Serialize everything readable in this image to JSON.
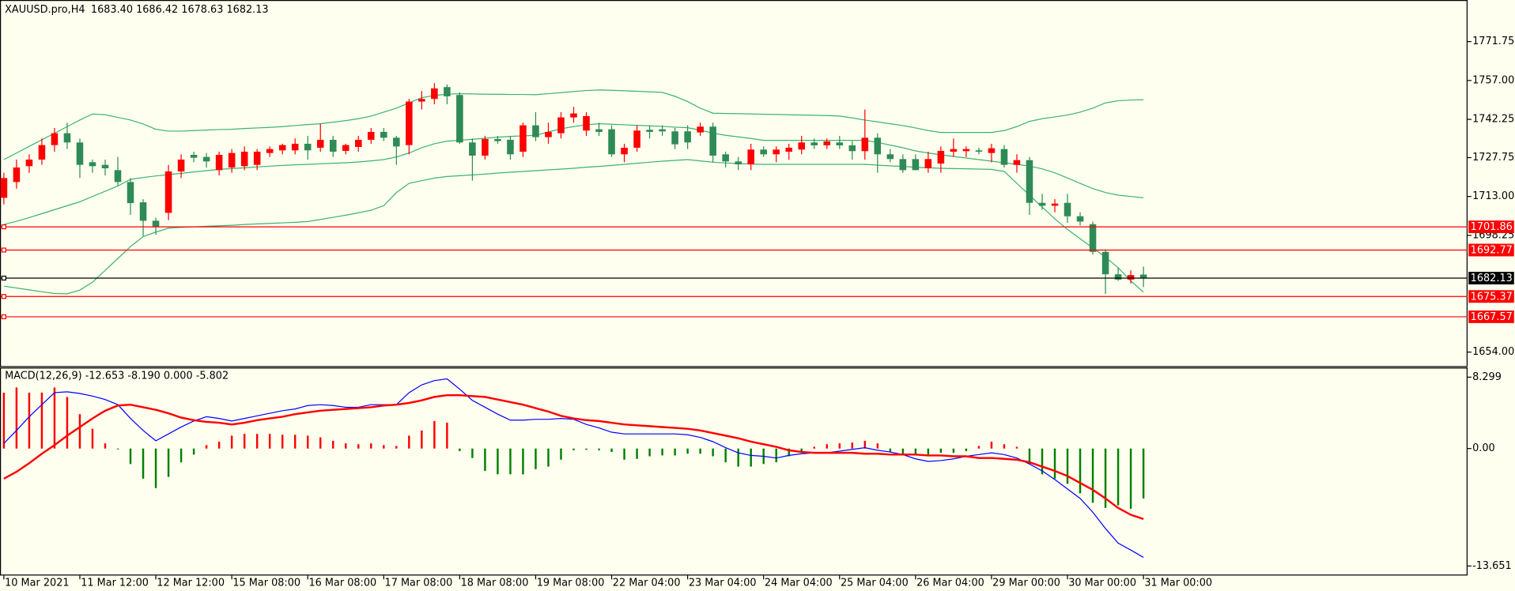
{
  "chart_data": [
    {
      "type": "candlestick",
      "title": "XAUUSD.pro,H4",
      "subtitle": "1683.40 1686.42 1678.63 1682.13",
      "up_color": "#ff0000",
      "down_color": "#2e8b57",
      "open": [
        1712.5,
        1718.5,
        1724.5,
        1727,
        1732.5,
        1737,
        1733.5,
        1726,
        1725,
        1723,
        1718.5,
        1710.8,
        1703.8,
        1706.8,
        1722.5,
        1728.8,
        1728,
        1723,
        1724,
        1724.5,
        1725,
        1729.5,
        1730.5,
        1730.5,
        1733,
        1731.5,
        1734.5,
        1730.3,
        1731.8,
        1734.5,
        1737.5,
        1735.3,
        1732.5,
        1749,
        1750,
        1754.5,
        1751.5,
        1733.5,
        1728.5,
        1734.8,
        1734.5,
        1730,
        1740,
        1735.5,
        1737,
        1743,
        1738,
        1738.5,
        1738.5,
        1729,
        1731.5,
        1738.3,
        1738.5,
        1737.7,
        1737.7,
        1737.3,
        1739.5,
        1729,
        1726.3,
        1725.2,
        1730.8,
        1729,
        1730,
        1730.8,
        1733.5,
        1732.4,
        1733.5,
        1732.4,
        1730.2,
        1735.3,
        1729,
        1727.2,
        1727.2,
        1723.7,
        1725.5,
        1730,
        1730.2,
        1730.5,
        1729.5,
        1731,
        1725,
        1726.8,
        1710.6,
        1709.5,
        1710.6,
        1705.5,
        1702.5,
        1692,
        1683.5,
        1681.5,
        1683.4
      ],
      "high": [
        1722,
        1727,
        1729,
        1735,
        1739,
        1741,
        1735,
        1727,
        1727,
        1728,
        1720,
        1712,
        1705,
        1725,
        1729,
        1730,
        1729.5,
        1730,
        1731,
        1732,
        1731,
        1732,
        1733,
        1735,
        1736,
        1740.5,
        1736,
        1733,
        1736,
        1739,
        1739,
        1736,
        1750,
        1753,
        1756,
        1755.5,
        1752.5,
        1735,
        1736,
        1736,
        1736,
        1741,
        1745,
        1741,
        1745,
        1747,
        1745,
        1741,
        1740,
        1733,
        1740,
        1740,
        1740,
        1739,
        1740,
        1741,
        1741,
        1730,
        1728,
        1733,
        1732,
        1732,
        1733,
        1736,
        1735,
        1735,
        1736,
        1734,
        1746,
        1737,
        1731,
        1729,
        1729,
        1730,
        1732,
        1735,
        1732,
        1731.5,
        1733,
        1732.5,
        1729,
        1728,
        1714,
        1712,
        1714,
        1707,
        1703.5,
        1693,
        1686,
        1685,
        1686.42
      ],
      "low": [
        1710,
        1716,
        1722,
        1725,
        1730,
        1731,
        1720,
        1722,
        1721,
        1717,
        1706,
        1698,
        1698.5,
        1704,
        1720,
        1726,
        1724,
        1721,
        1722,
        1723,
        1723,
        1728,
        1729,
        1729,
        1727,
        1730,
        1728,
        1729,
        1730,
        1733,
        1734,
        1725,
        1729,
        1746,
        1748,
        1748,
        1733,
        1719,
        1727,
        1733,
        1727,
        1728,
        1734,
        1733,
        1735,
        1741,
        1736,
        1736,
        1728,
        1726,
        1730,
        1735,
        1736,
        1731,
        1731,
        1736,
        1726,
        1724,
        1723,
        1723,
        1728,
        1726,
        1727,
        1729,
        1731,
        1731,
        1731,
        1727,
        1727,
        1722,
        1726,
        1722,
        1723,
        1722,
        1722,
        1728,
        1728,
        1729,
        1726,
        1724,
        1722,
        1706,
        1708,
        1707,
        1703,
        1702,
        1691,
        1676,
        1681,
        1680,
        1678.63
      ],
      "close": [
        1720,
        1724,
        1727,
        1732.5,
        1737,
        1733.5,
        1725,
        1724.5,
        1723.7,
        1718.5,
        1710.5,
        1703.8,
        1701.5,
        1722.5,
        1727,
        1727.7,
        1726.3,
        1728.8,
        1729.5,
        1730,
        1730,
        1731,
        1732.5,
        1733,
        1730.5,
        1734.5,
        1730,
        1732.5,
        1734.5,
        1737.5,
        1735.3,
        1732,
        1749,
        1750,
        1754,
        1751,
        1733.5,
        1728.5,
        1734.8,
        1734,
        1729,
        1740,
        1735.5,
        1737.5,
        1743,
        1744.5,
        1743.5,
        1737.5,
        1729,
        1731.5,
        1738,
        1737.5,
        1737.7,
        1732.8,
        1733.5,
        1739.5,
        1728.5,
        1726.3,
        1725.2,
        1730.8,
        1729,
        1730.8,
        1731.5,
        1733.5,
        1732.4,
        1733.9,
        1732.4,
        1730.2,
        1735.3,
        1729,
        1727.2,
        1723,
        1723,
        1727.2,
        1730.3,
        1731,
        1731,
        1730,
        1731.3,
        1725,
        1726.8,
        1710.6,
        1709.5,
        1710.3,
        1705.5,
        1703.5,
        1692,
        1683.5,
        1681.5,
        1683.2,
        1682.13
      ],
      "overlays": [
        {
          "color": "#3cb371",
          "values": [
            1727,
            1729.5,
            1732,
            1734.5,
            1737,
            1739.5,
            1742,
            1744.3,
            1744,
            1743,
            1742,
            1740.5,
            1738.5,
            1737.8,
            1737.8,
            1738,
            1738.2,
            1738.4,
            1738.5,
            1738.8,
            1739,
            1739.2,
            1739.5,
            1739.9,
            1740.3,
            1740.6,
            1741.2,
            1741.8,
            1742.5,
            1743.5,
            1745,
            1746.5,
            1748.5,
            1750.5,
            1751.3,
            1751.8,
            1752,
            1751.9,
            1751.8,
            1751.8,
            1751.7,
            1751.7,
            1751.6,
            1752,
            1752.4,
            1752.8,
            1753.2,
            1753.4,
            1753.3,
            1753.1,
            1752.9,
            1752.7,
            1752.5,
            1751,
            1749,
            1746.5,
            1744.6,
            1744.5,
            1744.4,
            1744.3,
            1744.2,
            1744.1,
            1744,
            1743.9,
            1743.8,
            1743.7,
            1743.5,
            1742.8,
            1742,
            1741.3,
            1740.6,
            1739.9,
            1739,
            1738,
            1737.3,
            1737.3,
            1737.3,
            1737.3,
            1737.3,
            1738,
            1739.5,
            1741.5,
            1742.5,
            1743.2,
            1743.9,
            1745,
            1746.5,
            1748.5,
            1749.3,
            1749.6,
            1749.7
          ]
        },
        {
          "color": "#3cb371",
          "values": [
            1702.4,
            1703.6,
            1705,
            1706.5,
            1708,
            1709.5,
            1711,
            1713,
            1715,
            1717,
            1719.5,
            1720.2,
            1720.8,
            1721.3,
            1721.8,
            1722.3,
            1722.8,
            1723.3,
            1723.6,
            1723.9,
            1724.2,
            1724.5,
            1724.8,
            1725,
            1725.2,
            1725.4,
            1725.6,
            1725.8,
            1726.1,
            1726.5,
            1727,
            1728,
            1729.5,
            1731.5,
            1733,
            1734,
            1734.3,
            1734.7,
            1735.1,
            1735.5,
            1735.8,
            1736,
            1736.2,
            1737.5,
            1738.7,
            1739.5,
            1740.2,
            1740.6,
            1740.4,
            1740.2,
            1740,
            1739.8,
            1739.6,
            1739.3,
            1739.1,
            1738.2,
            1737,
            1736.2,
            1735.6,
            1735,
            1734.3,
            1734.3,
            1734.3,
            1734.3,
            1734.3,
            1734.3,
            1734.3,
            1734.3,
            1734.3,
            1733.5,
            1732.5,
            1731.5,
            1730.3,
            1729.5,
            1728.8,
            1728.2,
            1727.6,
            1727,
            1726.4,
            1725.8,
            1725.2,
            1724.5,
            1723.5,
            1722,
            1720,
            1718,
            1716,
            1714.5,
            1713.5,
            1713,
            1712.5
          ]
        },
        {
          "color": "#3cb371",
          "values": [
            1679,
            1678.3,
            1677.6,
            1676.9,
            1676.2,
            1676.1,
            1677.5,
            1680.5,
            1685,
            1689.5,
            1694,
            1697.8,
            1699.5,
            1701,
            1701.3,
            1701.5,
            1701.7,
            1701.9,
            1702.1,
            1702.4,
            1702.6,
            1702.8,
            1703,
            1703.2,
            1703.5,
            1704.3,
            1705.1,
            1705.9,
            1706.8,
            1707.8,
            1709.5,
            1714.5,
            1718,
            1719,
            1720,
            1720.6,
            1720.9,
            1721.2,
            1721.5,
            1721.9,
            1722.2,
            1722.5,
            1722.8,
            1723.1,
            1723.4,
            1723.7,
            1724.1,
            1724.4,
            1724.8,
            1725.2,
            1725.6,
            1726,
            1726.4,
            1726.7,
            1727,
            1726.5,
            1726,
            1725.7,
            1725.5,
            1725.3,
            1725.2,
            1725.2,
            1725.2,
            1725.2,
            1725.2,
            1725.2,
            1725.2,
            1725.2,
            1725.2,
            1724.9,
            1724.6,
            1724.4,
            1724.1,
            1723.9,
            1723.7,
            1723.6,
            1723.5,
            1723.4,
            1723.3,
            1722.5,
            1718,
            1713.5,
            1709,
            1704.5,
            1700.5,
            1697,
            1693.5,
            1690,
            1686,
            1681,
            1676.7
          ]
        }
      ],
      "levels": [
        {
          "value": 1701.86,
          "color": "#ff0000"
        },
        {
          "value": 1692.77,
          "color": "#ff0000"
        },
        {
          "value": 1682.13,
          "color": "#000000"
        },
        {
          "value": 1675.37,
          "color": "#ff0000"
        },
        {
          "value": 1667.57,
          "color": "#ff0000"
        }
      ],
      "ylim": [
        1648.86,
        1786.79
      ],
      "yticks": [
        1771.75,
        {
          "value": 1757,
          "label": "1757.00"
        },
        1742.25,
        1727.75,
        {
          "value": 1713,
          "label": "1713.00"
        },
        1698.25,
        {
          "value": 1654,
          "label": "1654.00"
        }
      ]
    },
    {
      "type": "macd",
      "title": "MACD(12,26,9) -12.653 -8.190 0.000 -5.802",
      "categories": [
        "10 Mar 2021",
        null,
        null,
        null,
        null,
        null,
        "11 Mar 12:00",
        null,
        null,
        null,
        null,
        null,
        "12 Mar 12:00",
        null,
        null,
        null,
        null,
        null,
        "15 Mar 08:00",
        null,
        null,
        null,
        null,
        null,
        "16 Mar 08:00",
        null,
        null,
        null,
        null,
        null,
        "17 Mar 08:00",
        null,
        null,
        null,
        null,
        null,
        "18 Mar 08:00",
        null,
        null,
        null,
        null,
        null,
        "19 Mar 08:00",
        null,
        null,
        null,
        null,
        null,
        "22 Mar 04:00",
        null,
        null,
        null,
        null,
        null,
        "23 Mar 04:00",
        null,
        null,
        null,
        null,
        null,
        "24 Mar 04:00",
        null,
        null,
        null,
        null,
        null,
        "25 Mar 04:00",
        null,
        null,
        null,
        null,
        null,
        "26 Mar 04:00",
        null,
        null,
        null,
        null,
        null,
        "29 Mar 00:00",
        null,
        null,
        null,
        null,
        null,
        "30 Mar 00:00",
        null,
        null,
        null,
        null,
        null,
        "31 Mar 00:00"
      ],
      "histogram": {
        "positive_color": "#ff0000",
        "negative_color": "#008000",
        "values": [
          6.5,
          7.1,
          6.5,
          6.5,
          7.1,
          6,
          4,
          2.3,
          0.6,
          -0.1,
          -1.8,
          -3.5,
          -4.6,
          -3.3,
          -1.6,
          -0.7,
          0.4,
          0.8,
          1.5,
          1.7,
          1.7,
          1.7,
          1.6,
          1.6,
          1.5,
          1.3,
          0.9,
          0.6,
          0.5,
          0.6,
          0.4,
          0.3,
          1.5,
          2.1,
          3.2,
          3,
          -0.3,
          -1.1,
          -2.6,
          -3,
          -3,
          -3,
          -2.4,
          -2.1,
          -1.3,
          -0.2,
          -0.15,
          -0.2,
          -0.4,
          -1.3,
          -1.2,
          -0.9,
          -0.8,
          -0.8,
          -0.6,
          -0.6,
          -0.9,
          -1.6,
          -2.1,
          -2.1,
          -1.8,
          -1.6,
          -0.9,
          -0.4,
          0.2,
          0.5,
          0.6,
          0.7,
          0.9,
          0.6,
          -0.4,
          -0.7,
          -0.7,
          -0.7,
          -0.5,
          -0.5,
          -0.3,
          0.3,
          0.8,
          0.5,
          0.2,
          -1.8,
          -3,
          -3.5,
          -4.1,
          -5.2,
          -6.3,
          -6.9,
          -6.6,
          -7,
          -5.8
        ]
      },
      "series": [
        {
          "color": "#0000ff",
          "width": 1,
          "values": [
            0.6,
            2.1,
            3.7,
            5.1,
            6.5,
            6.6,
            6.4,
            6.1,
            5.7,
            5.1,
            3.5,
            2.1,
            0.9,
            1.7,
            2.5,
            3.2,
            3.7,
            3.5,
            3.2,
            3.5,
            3.8,
            4.1,
            4.4,
            4.6,
            5,
            5.1,
            5,
            4.8,
            4.8,
            5.1,
            5.1,
            5.1,
            6.5,
            7.4,
            7.9,
            8.1,
            6.9,
            5.6,
            4.8,
            4,
            3.3,
            3.3,
            3.4,
            3.4,
            3.5,
            3.4,
            2.8,
            2.4,
            1.9,
            1.7,
            1.7,
            1.7,
            1.7,
            1.7,
            1.6,
            1.3,
            0.8,
            0.1,
            -0.5,
            -0.8,
            -0.9,
            -1.1,
            -0.8,
            -0.6,
            -0.5,
            -0.5,
            -0.3,
            -0.1,
            0.1,
            -0.2,
            -0.4,
            -0.7,
            -1.2,
            -1.5,
            -1.4,
            -1.2,
            -0.9,
            -0.7,
            -0.5,
            -0.7,
            -1.1,
            -1.8,
            -2.6,
            -3.6,
            -4.7,
            -5.8,
            -7.4,
            -9.3,
            -11,
            -11.8,
            -12.65
          ]
        },
        {
          "color": "#ff0000",
          "width": 2,
          "values": [
            -3.5,
            -2.7,
            -1.7,
            -0.6,
            0.4,
            1.5,
            2.5,
            3.5,
            4.4,
            5,
            5.1,
            4.8,
            4.5,
            4.1,
            3.6,
            3.3,
            3.1,
            3,
            2.8,
            3,
            3.3,
            3.5,
            3.7,
            4,
            4.2,
            4.4,
            4.5,
            4.6,
            4.7,
            4.8,
            5,
            5.1,
            5.3,
            5.6,
            6,
            6.2,
            6.2,
            6.1,
            6,
            5.7,
            5.4,
            5.1,
            4.7,
            4.3,
            3.8,
            3.5,
            3.3,
            3.2,
            3,
            2.8,
            2.7,
            2.6,
            2.5,
            2.4,
            2.3,
            2.1,
            1.8,
            1.5,
            1.2,
            0.8,
            0.5,
            0.2,
            -0.2,
            -0.4,
            -0.5,
            -0.5,
            -0.5,
            -0.5,
            -0.6,
            -0.6,
            -0.7,
            -0.7,
            -0.7,
            -0.8,
            -0.8,
            -0.9,
            -0.9,
            -1.1,
            -1.1,
            -1.2,
            -1.3,
            -1.6,
            -2.1,
            -2.6,
            -3.2,
            -4,
            -4.8,
            -5.8,
            -6.9,
            -7.7,
            -8.19
          ]
        }
      ],
      "ylim": [
        -14.65,
        9.19
      ],
      "yticks": [
        8.299,
        {
          "value": 0,
          "label": "0.00"
        },
        -13.651
      ]
    }
  ]
}
